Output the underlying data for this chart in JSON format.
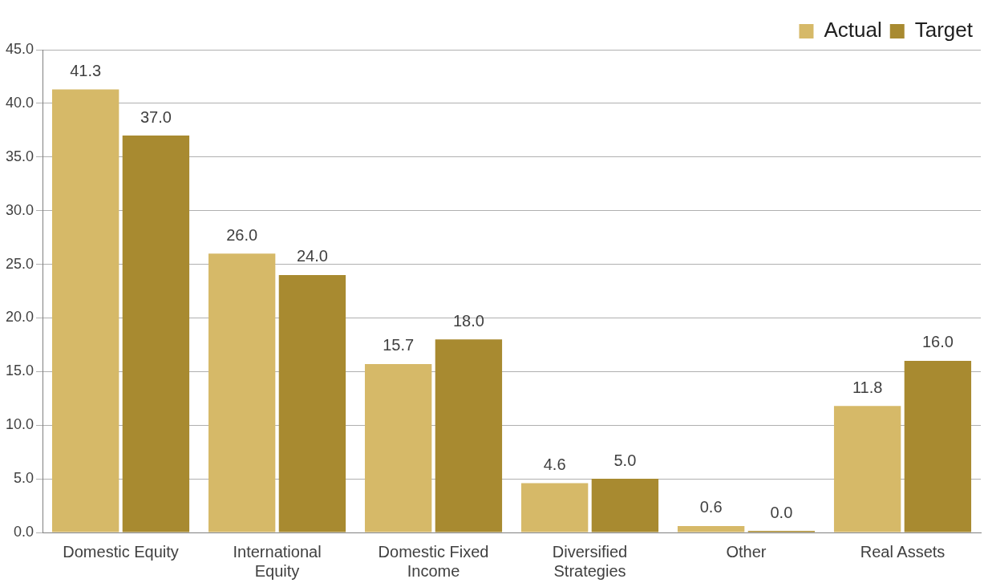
{
  "chart_data": {
    "type": "bar",
    "categories": [
      "Domestic Equity",
      "International Equity",
      "Domestic Fixed Income",
      "Diversified Strategies",
      "Other",
      "Real Assets"
    ],
    "series": [
      {
        "name": "Actual",
        "color": "#d6b968",
        "values": [
          41.3,
          26.0,
          15.7,
          4.6,
          0.6,
          11.8
        ],
        "value_labels": [
          "41.3",
          "26.0",
          "15.7",
          "4.6",
          "0.6",
          "11.8"
        ]
      },
      {
        "name": "Target",
        "color": "#a88a30",
        "values": [
          37.0,
          24.0,
          18.0,
          5.0,
          0.0,
          16.0
        ],
        "value_labels": [
          "37.0",
          "24.0",
          "18.0",
          "5.0",
          "0.0",
          "16.0"
        ]
      }
    ],
    "ylim": [
      0,
      45
    ],
    "yticks": [
      {
        "value": 0,
        "label": "0.0"
      },
      {
        "value": 5,
        "label": "5.0"
      },
      {
        "value": 10,
        "label": "10.0"
      },
      {
        "value": 15,
        "label": "15.0"
      },
      {
        "value": 20,
        "label": "20.0"
      },
      {
        "value": 25,
        "label": "25.0"
      },
      {
        "value": 30,
        "label": "30.0"
      },
      {
        "value": 35,
        "label": "35.0"
      },
      {
        "value": 40,
        "label": "40.0"
      },
      {
        "value": 45,
        "label": "45.0"
      }
    ],
    "grid": "y",
    "legend": "top right"
  }
}
